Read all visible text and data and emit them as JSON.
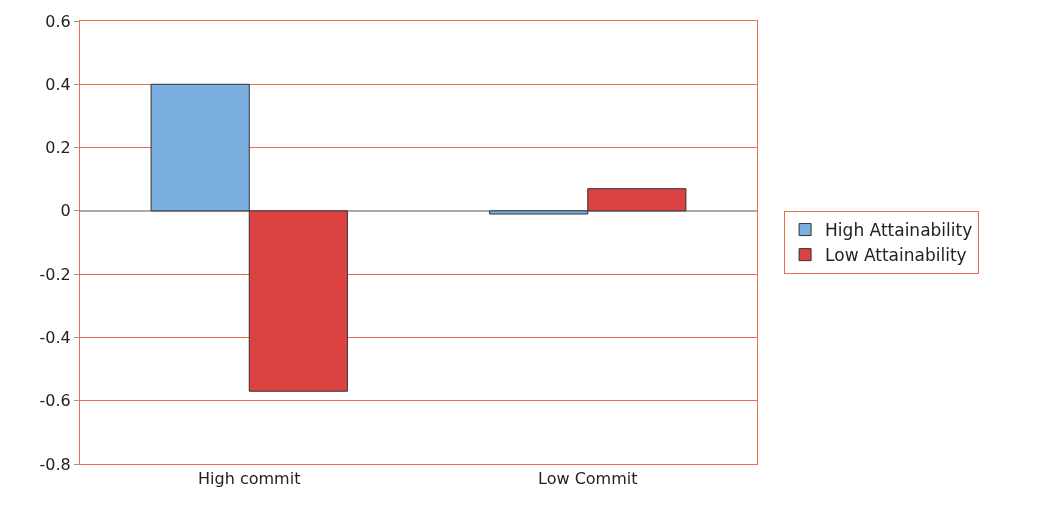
{
  "chart_data": {
    "type": "bar",
    "categories": [
      "High commit",
      "Low Commit"
    ],
    "series": [
      {
        "name": "High Attainability",
        "color": "#7bafdf",
        "values": [
          0.4,
          -0.01
        ]
      },
      {
        "name": "Low Attainability",
        "color": "#dc4242",
        "values": [
          -0.57,
          0.07
        ]
      }
    ],
    "ylim": [
      -0.8,
      0.6
    ],
    "yticks": [
      {
        "value": -0.8,
        "label": "-0.8"
      },
      {
        "value": -0.6,
        "label": "-0.6"
      },
      {
        "value": -0.4,
        "label": "-0.4"
      },
      {
        "value": -0.2,
        "label": "-0.2"
      },
      0,
      0.2,
      0.4,
      0.6
    ],
    "grid": "y",
    "legend": "right"
  }
}
